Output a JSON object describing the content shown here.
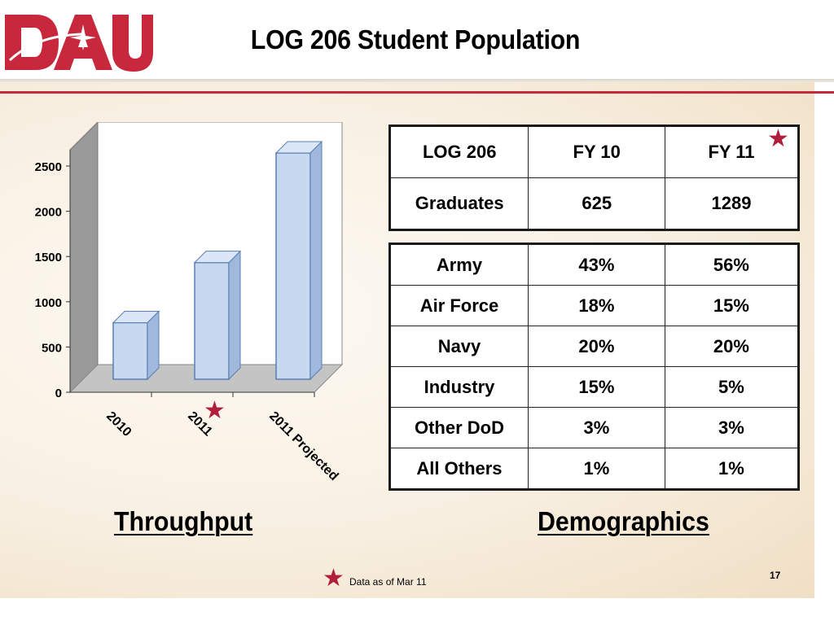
{
  "header": {
    "logo_text": "DAU",
    "title": "LOG 206 Student Population"
  },
  "colors": {
    "brand_red": "#c8283c",
    "star_red": "#b01e3c",
    "bar_fill": "#c6d9f1",
    "bar_stroke": "#5b7fb3"
  },
  "chart_data": {
    "type": "bar",
    "categories": [
      "2010",
      "2011",
      "2011 Projected"
    ],
    "values": [
      625,
      1289,
      2500
    ],
    "yticks": [
      "0",
      "500",
      "1000",
      "1500",
      "2000",
      "2500"
    ],
    "ylim": [
      0,
      2500
    ],
    "title": "",
    "xlabel": "",
    "ylabel": "",
    "grid": false,
    "three_d": true
  },
  "table_summary": {
    "header": [
      "LOG 206",
      "FY 10",
      "FY 11"
    ],
    "rows": [
      [
        "Graduates",
        "625",
        "1289"
      ]
    ]
  },
  "table_demographics": {
    "rows": [
      [
        "Army",
        "43%",
        "56%"
      ],
      [
        "Air Force",
        "18%",
        "15%"
      ],
      [
        "Navy",
        "20%",
        "20%"
      ],
      [
        "Industry",
        "15%",
        "5%"
      ],
      [
        "Other DoD",
        "3%",
        "3%"
      ],
      [
        "All Others",
        "1%",
        "1%"
      ]
    ]
  },
  "labels": {
    "throughput": "Throughput",
    "demographics": "Demographics"
  },
  "footer": {
    "note": "Data as of Mar 11",
    "page_number": "17"
  },
  "icons": {
    "star": "★"
  }
}
